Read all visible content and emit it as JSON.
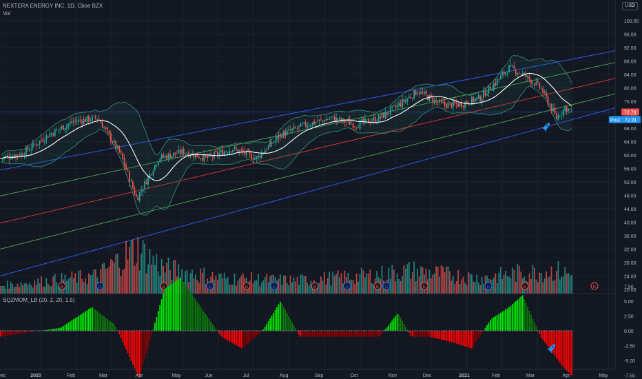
{
  "header": {
    "title": "NEXTERA ENERGY INC, 1D, Cboe BZX",
    "vol_label": "Vol",
    "oscillator_label": "SQZMOM_LB (20, 2, 20, 1.5)",
    "currency": "USD"
  },
  "price_axis": {
    "ticks": [
      "100.00",
      "96.00",
      "92.00",
      "88.00",
      "84.00",
      "80.00",
      "76.00",
      "72.00",
      "68.00",
      "64.00",
      "60.00",
      "56.00",
      "52.00",
      "48.00",
      "44.00",
      "40.00",
      "36.00",
      "32.00",
      "28.00",
      "24.00",
      "20.00"
    ],
    "last_price_label": "72.79",
    "post_label": "Post",
    "post_price_label": "72.91"
  },
  "osc_axis": {
    "ticks": [
      "7.50",
      "5.00",
      "2.50",
      "0.00",
      "-2.50",
      "-5.00",
      "-7.50"
    ]
  },
  "time_axis": {
    "labels": [
      "Dec",
      "2020",
      "Feb",
      "Mar",
      "Apr",
      "May",
      "Jun",
      "Jul",
      "Aug",
      "Sep",
      "Oct",
      "Nov",
      "Dec",
      "2021",
      "Feb",
      "Mar",
      "Apr",
      "May"
    ]
  },
  "event_markers": [
    "E",
    "D",
    "E",
    "D",
    "E",
    "D",
    "E",
    "D",
    "E",
    "D",
    "E",
    "D",
    "E",
    "E"
  ],
  "colors": {
    "background": "#131722",
    "grid": "#1e222d",
    "up": "#26a69a",
    "down": "#ef5350",
    "sma": "#ffffff",
    "bollinger": "#2e7d6b",
    "channel_outer": "#2962ff",
    "channel_inner": "#4caf50",
    "channel_mid": "#e53935",
    "squeeze_up_strong": "#00e600",
    "squeeze_up_weak": "#0a7a0a",
    "squeeze_down_strong": "#ff0000",
    "squeeze_down_weak": "#8b0000"
  },
  "chart_data": {
    "type": "candlestick",
    "ticker": "NEXTERA ENERGY INC",
    "interval": "1D",
    "exchange": "Cboe BZX",
    "ylim": [
      20,
      102
    ],
    "price_anchors": {
      "dates": [
        "2019-12-01",
        "2019-12-20",
        "2020-01-10",
        "2020-01-31",
        "2020-02-20",
        "2020-03-10",
        "2020-03-23",
        "2020-04-10",
        "2020-05-01",
        "2020-05-20",
        "2020-06-10",
        "2020-06-30",
        "2020-07-20",
        "2020-08-10",
        "2020-08-31",
        "2020-09-20",
        "2020-10-10",
        "2020-10-30",
        "2020-11-10",
        "2020-11-30",
        "2020-12-15",
        "2021-01-01",
        "2021-01-15",
        "2021-01-25",
        "2021-02-05",
        "2021-02-20",
        "2021-03-05",
        "2021-03-12",
        "2021-03-19"
      ],
      "close": [
        59,
        60.5,
        66,
        70,
        71,
        60,
        47,
        59,
        61,
        59,
        62,
        59,
        66,
        69,
        71,
        69,
        71,
        76,
        79,
        75,
        75,
        77,
        82,
        86,
        84,
        80,
        71,
        74,
        72.8
      ]
    },
    "volume_anchors": {
      "dates": [
        "2019-12-01",
        "2020-02-20",
        "2020-03-10",
        "2020-03-23",
        "2020-04-15",
        "2020-06-01",
        "2020-08-01",
        "2020-10-01",
        "2020-11-05",
        "2021-01-01",
        "2021-02-01",
        "2021-03-05",
        "2021-03-19"
      ],
      "volume_scale": [
        22,
        26,
        33,
        37,
        29,
        25,
        24,
        26,
        28,
        25,
        27,
        28,
        26
      ]
    },
    "squeeze_momentum_anchors": {
      "dates": [
        "2019-12-01",
        "2020-01-20",
        "2020-02-15",
        "2020-03-05",
        "2020-03-25",
        "2020-04-15",
        "2020-04-28",
        "2020-05-15",
        "2020-06-01",
        "2020-06-18",
        "2020-07-05",
        "2020-07-20",
        "2020-08-05",
        "2020-08-20",
        "2020-09-05",
        "2020-09-25",
        "2020-10-10",
        "2020-10-25",
        "2020-11-05",
        "2020-11-20",
        "2020-12-10",
        "2020-12-25",
        "2021-01-10",
        "2021-01-25",
        "2021-02-05",
        "2021-02-20",
        "2021-03-10",
        "2021-03-19"
      ],
      "values": [
        -1,
        0.5,
        4,
        1,
        -8,
        7,
        9,
        4,
        -1,
        -3,
        0,
        5,
        -1,
        -1,
        -1,
        -1,
        -1,
        3,
        -1,
        -1,
        -2,
        -3,
        2,
        4,
        6,
        -1,
        -6,
        -7.8
      ]
    },
    "sma_period": 20,
    "bollinger": {
      "period": 20,
      "stddev": 2
    },
    "last_price": 72.79,
    "post_market_price": 72.91
  }
}
